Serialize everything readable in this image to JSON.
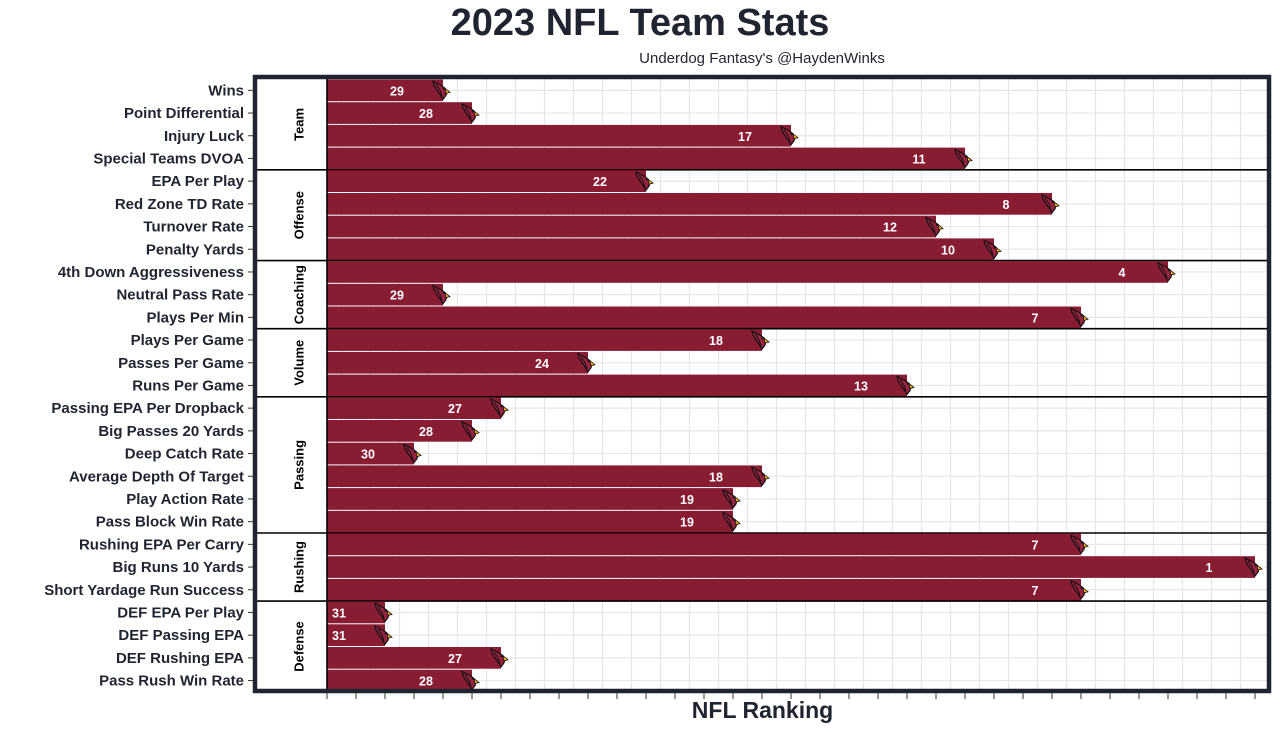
{
  "colors": {
    "bar": "#871C33",
    "frame": "#1f2430",
    "grid": "#e6e6e6",
    "logo": "#97233F",
    "beak": "#FFB612"
  },
  "icon": "cardinals-logo-icon",
  "chart_data": {
    "type": "bar",
    "orientation": "horizontal",
    "title": "2023 NFL Team Stats",
    "subtitle": "Underdog Fantasy's @HaydenWinks",
    "xlabel": "NFL Ranking",
    "ylabel": "",
    "x_axis": "reversed rank, rank 1 longest bar",
    "xlim": [
      32,
      0
    ],
    "grid": true,
    "legend": "none",
    "groups": [
      {
        "name": "Team",
        "items": [
          {
            "label": "Wins",
            "rank": 29
          },
          {
            "label": "Point Differential",
            "rank": 28
          },
          {
            "label": "Injury Luck",
            "rank": 17
          },
          {
            "label": "Special Teams DVOA",
            "rank": 11
          }
        ]
      },
      {
        "name": "Offense",
        "items": [
          {
            "label": "EPA Per Play",
            "rank": 22
          },
          {
            "label": "Red Zone TD Rate",
            "rank": 8
          },
          {
            "label": "Turnover Rate",
            "rank": 12
          },
          {
            "label": "Penalty Yards",
            "rank": 10
          }
        ]
      },
      {
        "name": "Coaching",
        "items": [
          {
            "label": "4th Down Aggressiveness",
            "rank": 4
          },
          {
            "label": "Neutral Pass Rate",
            "rank": 29
          },
          {
            "label": "Plays Per Min",
            "rank": 7
          }
        ]
      },
      {
        "name": "Volume",
        "items": [
          {
            "label": "Plays Per Game",
            "rank": 18
          },
          {
            "label": "Passes Per Game",
            "rank": 24
          },
          {
            "label": "Runs Per Game",
            "rank": 13
          }
        ]
      },
      {
        "name": "Passing",
        "items": [
          {
            "label": "Passing EPA Per Dropback",
            "rank": 27
          },
          {
            "label": "Big Passes 20 Yards",
            "rank": 28
          },
          {
            "label": "Deep Catch Rate",
            "rank": 30
          },
          {
            "label": "Average Depth Of Target",
            "rank": 18
          },
          {
            "label": "Play Action Rate",
            "rank": 19
          },
          {
            "label": "Pass Block Win Rate",
            "rank": 19
          }
        ]
      },
      {
        "name": "Rushing",
        "items": [
          {
            "label": "Rushing EPA Per Carry",
            "rank": 7
          },
          {
            "label": "Big Runs 10 Yards",
            "rank": 1
          },
          {
            "label": "Short Yardage Run Success",
            "rank": 7
          }
        ]
      },
      {
        "name": "Defense",
        "items": [
          {
            "label": "DEF EPA Per Play",
            "rank": 31
          },
          {
            "label": "DEF Passing EPA",
            "rank": 31
          },
          {
            "label": "DEF Rushing EPA",
            "rank": 27
          },
          {
            "label": "Pass Rush Win Rate",
            "rank": 28
          }
        ]
      }
    ]
  }
}
